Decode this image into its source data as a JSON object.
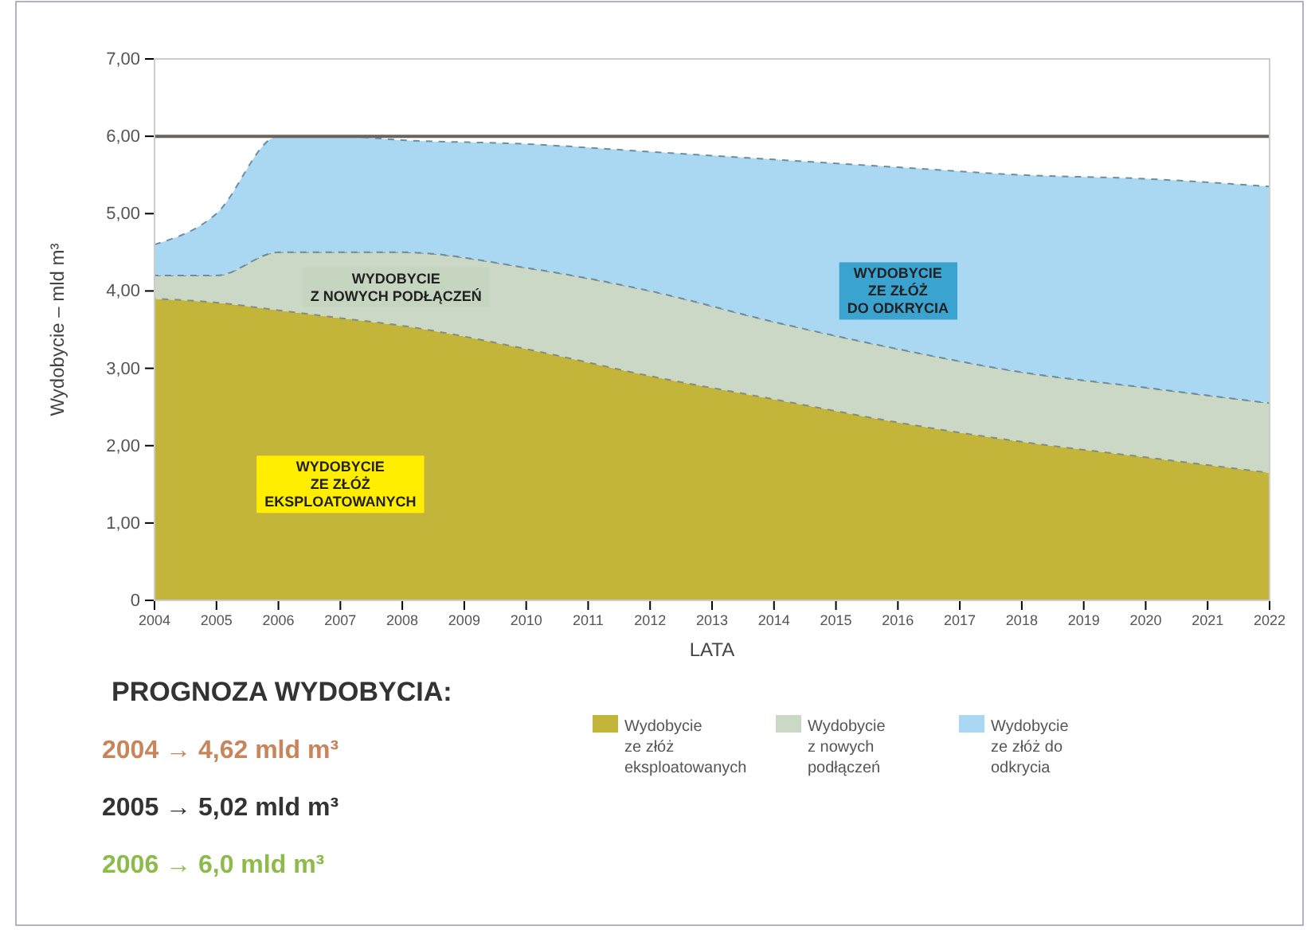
{
  "chart_data": {
    "type": "area",
    "stacked": true,
    "xlabel": "LATA",
    "ylabel": "Wydobycie – mld m³",
    "x": [
      2004,
      2005,
      2006,
      2007,
      2008,
      2010,
      2012,
      2014,
      2016,
      2018,
      2020,
      2022
    ],
    "xlim": [
      2004,
      2022
    ],
    "xticks": [
      2004,
      2005,
      2006,
      2007,
      2008,
      2009,
      2010,
      2011,
      2012,
      2013,
      2014,
      2015,
      2016,
      2017,
      2018,
      2019,
      2020,
      2021,
      2022
    ],
    "ylim": [
      0,
      7
    ],
    "yticks": [
      {
        "value": 0,
        "label": "0"
      },
      {
        "value": 1,
        "label": "1,00"
      },
      {
        "value": 2,
        "label": "2,00"
      },
      {
        "value": 3,
        "label": "3,00"
      },
      {
        "value": 4,
        "label": "4,00"
      },
      {
        "value": 5,
        "label": "5,00"
      },
      {
        "value": 6,
        "label": "6,00"
      },
      {
        "value": 7,
        "label": "7,00"
      }
    ],
    "series": [
      {
        "name": "Wydobycie ze złóż eksploatowanych",
        "color": "#c2b53a",
        "values": [
          3.9,
          3.85,
          3.75,
          3.65,
          3.55,
          3.25,
          2.9,
          2.6,
          2.3,
          2.05,
          1.85,
          1.65
        ]
      },
      {
        "name": "Wydobycie z nowych podłączeń",
        "color": "#cbd8c6",
        "values": [
          0.3,
          0.35,
          0.75,
          0.85,
          0.95,
          1.05,
          1.1,
          1.0,
          0.95,
          0.9,
          0.9,
          0.9
        ]
      },
      {
        "name": "Wydobycie ze złóż do odkrycia",
        "color": "#aad8f2",
        "values": [
          0.4,
          0.8,
          1.5,
          1.5,
          1.45,
          1.6,
          1.8,
          2.1,
          2.35,
          2.55,
          2.7,
          2.8
        ]
      }
    ],
    "ref_lines": [
      {
        "axis": "y",
        "value": 6,
        "color": "#6b625a"
      }
    ],
    "annotations": [
      "WYDOBYCIE\nZE ZŁÓŻ\nEKSPLOATOWANYCH",
      "WYDOBYCIE\nZ NOWYCH PODŁĄCZEŃ",
      "WYDOBYCIE\nZE ZŁÓŻ\nDO ODKRYCIA",
      "PROGNOZA WYDOBYCIA:",
      "2004 → 4,62 mld m³",
      "2005 → 5,02 mld m³",
      "2006 → 6,0 mld m³"
    ],
    "legend": "bottom",
    "grid": false
  }
}
